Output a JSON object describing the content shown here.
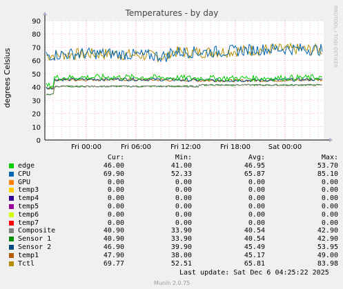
{
  "chart_data": {
    "type": "line",
    "title": "Temperatures - by day",
    "ylabel": "degrees Celsius",
    "ylim": [
      0,
      90
    ],
    "yticks": [
      "0",
      "10",
      "20",
      "30",
      "40",
      "50",
      "60",
      "70",
      "80",
      "90"
    ],
    "xticks": [
      "Fri 00:00",
      "Fri 06:00",
      "Fri 12:00",
      "Fri 18:00",
      "Sat 00:00"
    ],
    "grid": true,
    "watermark": "RRDTOOL / TOBI OETIKER",
    "series": [
      {
        "name": "edge",
        "color": "#00cc00",
        "cur": "46.00",
        "min": "41.00",
        "avg": "46.95",
        "max": "53.70",
        "level": 47,
        "noise": 2.2
      },
      {
        "name": "CPU",
        "color": "#0066b3",
        "cur": "69.90",
        "min": "52.33",
        "avg": "65.87",
        "max": "85.10",
        "level": 66,
        "noise": 4.5
      },
      {
        "name": "GPU",
        "color": "#ff8000",
        "cur": "0.00",
        "min": "0.00",
        "avg": "0.00",
        "max": "0.00",
        "level": 0,
        "noise": 0
      },
      {
        "name": "temp3",
        "color": "#ffcc00",
        "cur": "0.00",
        "min": "0.00",
        "avg": "0.00",
        "max": "0.00",
        "level": 0,
        "noise": 0
      },
      {
        "name": "temp4",
        "color": "#330099",
        "cur": "0.00",
        "min": "0.00",
        "avg": "0.00",
        "max": "0.00",
        "level": 0,
        "noise": 0
      },
      {
        "name": "temp5",
        "color": "#990099",
        "cur": "0.00",
        "min": "0.00",
        "avg": "0.00",
        "max": "0.00",
        "level": 0,
        "noise": 0
      },
      {
        "name": "temp6",
        "color": "#ccff00",
        "cur": "0.00",
        "min": "0.00",
        "avg": "0.00",
        "max": "0.00",
        "level": 0,
        "noise": 0
      },
      {
        "name": "temp7",
        "color": "#ff0000",
        "cur": "0.00",
        "min": "0.00",
        "avg": "0.00",
        "max": "0.00",
        "level": 0,
        "noise": 0
      },
      {
        "name": "Composite",
        "color": "#808080",
        "cur": "40.90",
        "min": "33.90",
        "avg": "40.54",
        "max": "42.90",
        "level": 40.5,
        "noise": 0.6
      },
      {
        "name": "Sensor 1",
        "color": "#008f00",
        "cur": "40.90",
        "min": "33.90",
        "avg": "40.54",
        "max": "42.90",
        "level": 40.5,
        "noise": 0.6
      },
      {
        "name": "Sensor 2",
        "color": "#00487d",
        "cur": "46.90",
        "min": "39.90",
        "avg": "45.49",
        "max": "53.95",
        "level": 45.5,
        "noise": 1.2
      },
      {
        "name": "temp1",
        "color": "#b35a00",
        "cur": "47.90",
        "min": "38.00",
        "avg": "45.17",
        "max": "49.00",
        "level": 45.2,
        "noise": 1.0
      },
      {
        "name": "Tctl",
        "color": "#b38f00",
        "cur": "69.77",
        "min": "52.51",
        "avg": "65.81",
        "max": "83.98",
        "level": 65.8,
        "noise": 4.4
      }
    ]
  },
  "legend_headers": {
    "cur": "Cur:",
    "min": "Min:",
    "avg": "Avg:",
    "max": "Max:"
  },
  "footer": {
    "last_update": "Last update: Sat Dec  6 04:25:22 2025",
    "version": "Munin 2.0.75"
  }
}
